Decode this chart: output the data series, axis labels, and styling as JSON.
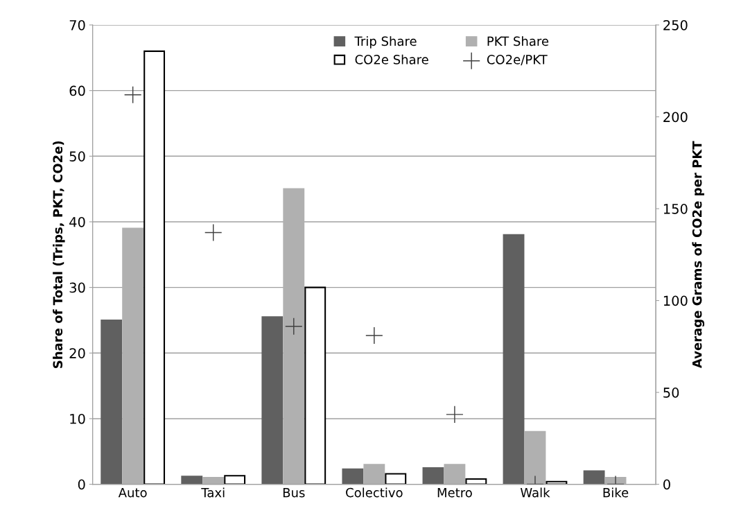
{
  "chart_data": {
    "type": "bar",
    "categories": [
      "Auto",
      "Taxi",
      "Bus",
      "Colectivo",
      "Metro",
      "Walk",
      "Bike"
    ],
    "ylabel": "Share of Total (Trips, PKT, CO2e)",
    "y2label": "Average Grams of CO2e per PKT",
    "ylim": [
      0,
      70
    ],
    "yticks": [
      0,
      10,
      20,
      30,
      40,
      50,
      60,
      70
    ],
    "y2lim": [
      0,
      250
    ],
    "y2ticks": [
      0,
      50,
      100,
      150,
      200,
      250
    ],
    "grid": "y",
    "legend": "top",
    "marker": "cross",
    "series": [
      {
        "name": "Trip Share",
        "color": "#606060",
        "values": [
          25,
          1.2,
          25.5,
          2.3,
          2.5,
          38,
          2
        ]
      },
      {
        "name": "PKT Share",
        "color": "#b0b0b0",
        "values": [
          39,
          1,
          45,
          3,
          3,
          8,
          1
        ]
      },
      {
        "name": "CO2e Share",
        "color": "#ffffff",
        "values": [
          66,
          1.3,
          30,
          1.6,
          0.8,
          0.4,
          0
        ]
      },
      {
        "name": "CO2e/PKT",
        "type": "scatter",
        "axis": "y2",
        "color": "#404040",
        "values": [
          212,
          137,
          86,
          81,
          38,
          0,
          0
        ]
      }
    ]
  }
}
